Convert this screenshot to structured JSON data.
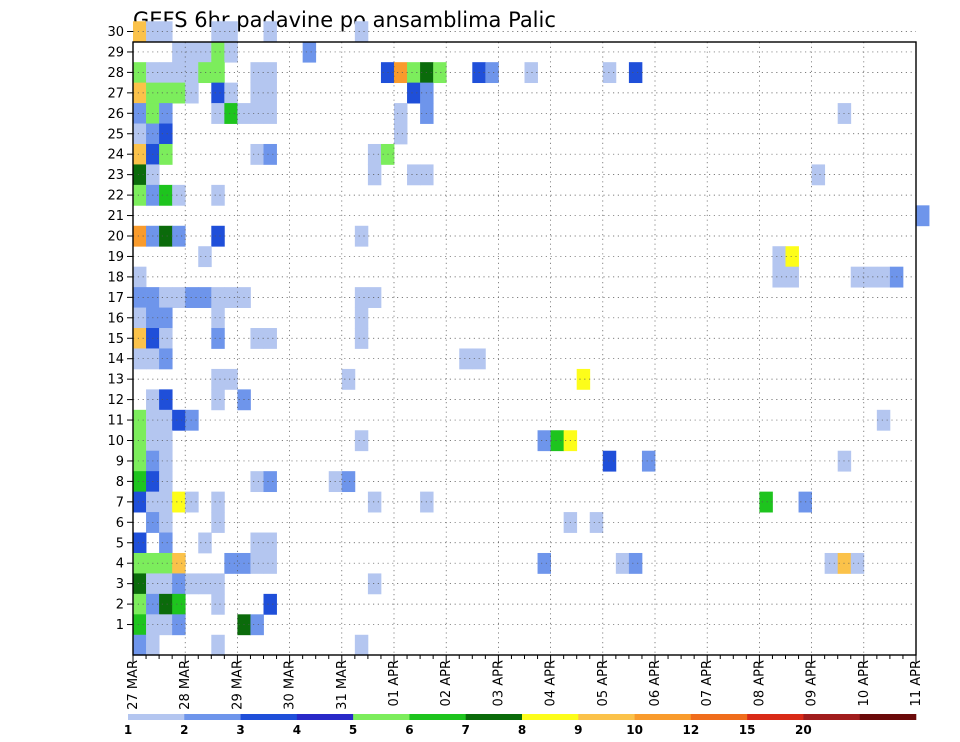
{
  "chart_data": {
    "type": "heatmap",
    "title": "GEFS 6hr padavine po ansamblima Palic",
    "members": [
      "1",
      "2",
      "3",
      "4",
      "5",
      "6",
      "7",
      "8",
      "9",
      "10",
      "11",
      "12",
      "13",
      "14",
      "15",
      "16",
      "17",
      "18",
      "19",
      "20",
      "21",
      "22",
      "23",
      "24",
      "25",
      "26",
      "27",
      "28",
      "29",
      "30"
    ],
    "x_labels": [
      "27 MAR",
      "28 MAR",
      "29 MAR",
      "30 MAR",
      "31 MAR",
      "01 APR",
      "02 APR",
      "03 APR",
      "04 APR",
      "05 APR",
      "06 APR",
      "07 APR",
      "08 APR",
      "09 APR",
      "10 APR",
      "11 APR"
    ],
    "steps_per_day": 4,
    "colorbar": {
      "labels": [
        "1",
        "2",
        "3",
        "4",
        "5",
        "6",
        "7",
        "8",
        "9",
        "10",
        "12",
        "15",
        "20"
      ],
      "colors": [
        "#b4c6f0",
        "#6e95eb",
        "#1f4fd9",
        "#2929c8",
        "#7ced5c",
        "#1ec41e",
        "#0b6b0b",
        "#fdfd1a",
        "#fbc24a",
        "#f99b2c",
        "#f06d1c",
        "#d92a17",
        "#a11d1d",
        "#6b0a0a"
      ]
    },
    "cells": [
      {
        "m": 30,
        "t": 0,
        "c": 8
      },
      {
        "m": 30,
        "t": 1,
        "c": 0
      },
      {
        "m": 30,
        "t": 2,
        "c": 0
      },
      {
        "m": 30,
        "t": 6,
        "c": 0
      },
      {
        "m": 30,
        "t": 7,
        "c": 0
      },
      {
        "m": 30,
        "t": 10,
        "c": 0
      },
      {
        "m": 30,
        "t": 17,
        "c": 0
      },
      {
        "m": 29,
        "t": 3,
        "c": 0
      },
      {
        "m": 29,
        "t": 4,
        "c": 0
      },
      {
        "m": 29,
        "t": 5,
        "c": 0
      },
      {
        "m": 29,
        "t": 6,
        "c": 4
      },
      {
        "m": 29,
        "t": 7,
        "c": 0
      },
      {
        "m": 29,
        "t": 13,
        "c": 1
      },
      {
        "m": 28,
        "t": 0,
        "c": 4
      },
      {
        "m": 28,
        "t": 1,
        "c": 0
      },
      {
        "m": 28,
        "t": 2,
        "c": 0
      },
      {
        "m": 28,
        "t": 3,
        "c": 0
      },
      {
        "m": 28,
        "t": 4,
        "c": 0
      },
      {
        "m": 28,
        "t": 5,
        "c": 4
      },
      {
        "m": 28,
        "t": 6,
        "c": 4
      },
      {
        "m": 28,
        "t": 9,
        "c": 0
      },
      {
        "m": 28,
        "t": 10,
        "c": 0
      },
      {
        "m": 28,
        "t": 19,
        "c": 2
      },
      {
        "m": 28,
        "t": 20,
        "c": 9
      },
      {
        "m": 28,
        "t": 21,
        "c": 4
      },
      {
        "m": 28,
        "t": 22,
        "c": 6
      },
      {
        "m": 28,
        "t": 23,
        "c": 4
      },
      {
        "m": 28,
        "t": 26,
        "c": 2
      },
      {
        "m": 28,
        "t": 27,
        "c": 1
      },
      {
        "m": 28,
        "t": 30,
        "c": 0
      },
      {
        "m": 28,
        "t": 36,
        "c": 0
      },
      {
        "m": 28,
        "t": 38,
        "c": 2
      },
      {
        "m": 27,
        "t": 0,
        "c": 8
      },
      {
        "m": 27,
        "t": 1,
        "c": 4
      },
      {
        "m": 27,
        "t": 2,
        "c": 4
      },
      {
        "m": 27,
        "t": 3,
        "c": 4
      },
      {
        "m": 27,
        "t": 4,
        "c": 0
      },
      {
        "m": 27,
        "t": 6,
        "c": 2
      },
      {
        "m": 27,
        "t": 7,
        "c": 0
      },
      {
        "m": 27,
        "t": 9,
        "c": 0
      },
      {
        "m": 27,
        "t": 10,
        "c": 0
      },
      {
        "m": 27,
        "t": 21,
        "c": 2
      },
      {
        "m": 27,
        "t": 22,
        "c": 1
      },
      {
        "m": 26,
        "t": 0,
        "c": 1
      },
      {
        "m": 26,
        "t": 1,
        "c": 4
      },
      {
        "m": 26,
        "t": 2,
        "c": 1
      },
      {
        "m": 26,
        "t": 6,
        "c": 0
      },
      {
        "m": 26,
        "t": 7,
        "c": 5
      },
      {
        "m": 26,
        "t": 8,
        "c": 0
      },
      {
        "m": 26,
        "t": 9,
        "c": 0
      },
      {
        "m": 26,
        "t": 10,
        "c": 0
      },
      {
        "m": 26,
        "t": 20,
        "c": 0
      },
      {
        "m": 26,
        "t": 22,
        "c": 1
      },
      {
        "m": 26,
        "t": 54,
        "c": 0
      },
      {
        "m": 25,
        "t": 0,
        "c": 0
      },
      {
        "m": 25,
        "t": 1,
        "c": 1
      },
      {
        "m": 25,
        "t": 2,
        "c": 2
      },
      {
        "m": 25,
        "t": 20,
        "c": 0
      },
      {
        "m": 24,
        "t": 0,
        "c": 8
      },
      {
        "m": 24,
        "t": 1,
        "c": 2
      },
      {
        "m": 24,
        "t": 2,
        "c": 4
      },
      {
        "m": 24,
        "t": 9,
        "c": 0
      },
      {
        "m": 24,
        "t": 10,
        "c": 1
      },
      {
        "m": 24,
        "t": 18,
        "c": 0
      },
      {
        "m": 24,
        "t": 19,
        "c": 4
      },
      {
        "m": 23,
        "t": 0,
        "c": 6
      },
      {
        "m": 23,
        "t": 1,
        "c": 0
      },
      {
        "m": 23,
        "t": 18,
        "c": 0
      },
      {
        "m": 23,
        "t": 21,
        "c": 0
      },
      {
        "m": 23,
        "t": 22,
        "c": 0
      },
      {
        "m": 23,
        "t": 52,
        "c": 0
      },
      {
        "m": 22,
        "t": 0,
        "c": 4
      },
      {
        "m": 22,
        "t": 1,
        "c": 1
      },
      {
        "m": 22,
        "t": 2,
        "c": 5
      },
      {
        "m": 22,
        "t": 3,
        "c": 0
      },
      {
        "m": 22,
        "t": 6,
        "c": 0
      },
      {
        "m": 21,
        "t": 60,
        "c": 1
      },
      {
        "m": 20,
        "t": 0,
        "c": 9
      },
      {
        "m": 20,
        "t": 1,
        "c": 1
      },
      {
        "m": 20,
        "t": 2,
        "c": 6
      },
      {
        "m": 20,
        "t": 3,
        "c": 1
      },
      {
        "m": 20,
        "t": 6,
        "c": 2
      },
      {
        "m": 20,
        "t": 17,
        "c": 0
      },
      {
        "m": 19,
        "t": 5,
        "c": 0
      },
      {
        "m": 19,
        "t": 49,
        "c": 0
      },
      {
        "m": 19,
        "t": 50,
        "c": 7
      },
      {
        "m": 18,
        "t": 0,
        "c": 0
      },
      {
        "m": 18,
        "t": 49,
        "c": 0
      },
      {
        "m": 18,
        "t": 50,
        "c": 0
      },
      {
        "m": 18,
        "t": 55,
        "c": 0
      },
      {
        "m": 18,
        "t": 56,
        "c": 0
      },
      {
        "m": 18,
        "t": 57,
        "c": 0
      },
      {
        "m": 18,
        "t": 58,
        "c": 1
      },
      {
        "m": 17,
        "t": 0,
        "c": 1
      },
      {
        "m": 17,
        "t": 1,
        "c": 1
      },
      {
        "m": 17,
        "t": 2,
        "c": 0
      },
      {
        "m": 17,
        "t": 3,
        "c": 0
      },
      {
        "m": 17,
        "t": 4,
        "c": 1
      },
      {
        "m": 17,
        "t": 5,
        "c": 1
      },
      {
        "m": 17,
        "t": 6,
        "c": 0
      },
      {
        "m": 17,
        "t": 7,
        "c": 0
      },
      {
        "m": 17,
        "t": 8,
        "c": 0
      },
      {
        "m": 17,
        "t": 17,
        "c": 0
      },
      {
        "m": 17,
        "t": 18,
        "c": 0
      },
      {
        "m": 16,
        "t": 0,
        "c": 0
      },
      {
        "m": 16,
        "t": 1,
        "c": 1
      },
      {
        "m": 16,
        "t": 2,
        "c": 1
      },
      {
        "m": 16,
        "t": 6,
        "c": 0
      },
      {
        "m": 16,
        "t": 17,
        "c": 0
      },
      {
        "m": 15,
        "t": 0,
        "c": 8
      },
      {
        "m": 15,
        "t": 1,
        "c": 2
      },
      {
        "m": 15,
        "t": 2,
        "c": 0
      },
      {
        "m": 15,
        "t": 6,
        "c": 1
      },
      {
        "m": 15,
        "t": 9,
        "c": 0
      },
      {
        "m": 15,
        "t": 10,
        "c": 0
      },
      {
        "m": 15,
        "t": 17,
        "c": 0
      },
      {
        "m": 14,
        "t": 0,
        "c": 0
      },
      {
        "m": 14,
        "t": 1,
        "c": 0
      },
      {
        "m": 14,
        "t": 2,
        "c": 1
      },
      {
        "m": 14,
        "t": 25,
        "c": 0
      },
      {
        "m": 14,
        "t": 26,
        "c": 0
      },
      {
        "m": 13,
        "t": 6,
        "c": 0
      },
      {
        "m": 13,
        "t": 7,
        "c": 0
      },
      {
        "m": 13,
        "t": 16,
        "c": 0
      },
      {
        "m": 13,
        "t": 34,
        "c": 7
      },
      {
        "m": 12,
        "t": 1,
        "c": 0
      },
      {
        "m": 12,
        "t": 2,
        "c": 2
      },
      {
        "m": 12,
        "t": 6,
        "c": 0
      },
      {
        "m": 12,
        "t": 8,
        "c": 1
      },
      {
        "m": 11,
        "t": 0,
        "c": 4
      },
      {
        "m": 11,
        "t": 1,
        "c": 0
      },
      {
        "m": 11,
        "t": 2,
        "c": 0
      },
      {
        "m": 11,
        "t": 3,
        "c": 2
      },
      {
        "m": 11,
        "t": 4,
        "c": 1
      },
      {
        "m": 11,
        "t": 57,
        "c": 0
      },
      {
        "m": 10,
        "t": 0,
        "c": 4
      },
      {
        "m": 10,
        "t": 1,
        "c": 0
      },
      {
        "m": 10,
        "t": 2,
        "c": 0
      },
      {
        "m": 10,
        "t": 17,
        "c": 0
      },
      {
        "m": 10,
        "t": 31,
        "c": 1
      },
      {
        "m": 10,
        "t": 32,
        "c": 5
      },
      {
        "m": 10,
        "t": 33,
        "c": 7
      },
      {
        "m": 9,
        "t": 0,
        "c": 4
      },
      {
        "m": 9,
        "t": 1,
        "c": 1
      },
      {
        "m": 9,
        "t": 2,
        "c": 0
      },
      {
        "m": 9,
        "t": 36,
        "c": 2
      },
      {
        "m": 9,
        "t": 39,
        "c": 1
      },
      {
        "m": 9,
        "t": 54,
        "c": 0
      },
      {
        "m": 8,
        "t": 0,
        "c": 5
      },
      {
        "m": 8,
        "t": 1,
        "c": 2
      },
      {
        "m": 8,
        "t": 2,
        "c": 0
      },
      {
        "m": 8,
        "t": 9,
        "c": 0
      },
      {
        "m": 8,
        "t": 10,
        "c": 1
      },
      {
        "m": 8,
        "t": 15,
        "c": 0
      },
      {
        "m": 8,
        "t": 16,
        "c": 1
      },
      {
        "m": 7,
        "t": 0,
        "c": 2
      },
      {
        "m": 7,
        "t": 1,
        "c": 0
      },
      {
        "m": 7,
        "t": 2,
        "c": 0
      },
      {
        "m": 7,
        "t": 3,
        "c": 7
      },
      {
        "m": 7,
        "t": 4,
        "c": 0
      },
      {
        "m": 7,
        "t": 6,
        "c": 0
      },
      {
        "m": 7,
        "t": 18,
        "c": 0
      },
      {
        "m": 7,
        "t": 22,
        "c": 0
      },
      {
        "m": 7,
        "t": 48,
        "c": 5
      },
      {
        "m": 7,
        "t": 51,
        "c": 1
      },
      {
        "m": 6,
        "t": 1,
        "c": 1
      },
      {
        "m": 6,
        "t": 2,
        "c": 0
      },
      {
        "m": 6,
        "t": 6,
        "c": 0
      },
      {
        "m": 6,
        "t": 33,
        "c": 0
      },
      {
        "m": 6,
        "t": 35,
        "c": 0
      },
      {
        "m": 5,
        "t": 0,
        "c": 2
      },
      {
        "m": 5,
        "t": 2,
        "c": 1
      },
      {
        "m": 5,
        "t": 5,
        "c": 0
      },
      {
        "m": 5,
        "t": 9,
        "c": 0
      },
      {
        "m": 5,
        "t": 10,
        "c": 0
      },
      {
        "m": 4,
        "t": 0,
        "c": 4
      },
      {
        "m": 4,
        "t": 1,
        "c": 4
      },
      {
        "m": 4,
        "t": 2,
        "c": 4
      },
      {
        "m": 4,
        "t": 3,
        "c": 8
      },
      {
        "m": 4,
        "t": 7,
        "c": 1
      },
      {
        "m": 4,
        "t": 8,
        "c": 1
      },
      {
        "m": 4,
        "t": 9,
        "c": 0
      },
      {
        "m": 4,
        "t": 10,
        "c": 0
      },
      {
        "m": 4,
        "t": 31,
        "c": 1
      },
      {
        "m": 4,
        "t": 37,
        "c": 0
      },
      {
        "m": 4,
        "t": 38,
        "c": 1
      },
      {
        "m": 4,
        "t": 53,
        "c": 0
      },
      {
        "m": 4,
        "t": 54,
        "c": 8
      },
      {
        "m": 4,
        "t": 55,
        "c": 0
      },
      {
        "m": 3,
        "t": 0,
        "c": 6
      },
      {
        "m": 3,
        "t": 1,
        "c": 0
      },
      {
        "m": 3,
        "t": 2,
        "c": 0
      },
      {
        "m": 3,
        "t": 3,
        "c": 1
      },
      {
        "m": 3,
        "t": 4,
        "c": 0
      },
      {
        "m": 3,
        "t": 5,
        "c": 0
      },
      {
        "m": 3,
        "t": 6,
        "c": 0
      },
      {
        "m": 3,
        "t": 18,
        "c": 0
      },
      {
        "m": 2,
        "t": 0,
        "c": 4
      },
      {
        "m": 2,
        "t": 1,
        "c": 1
      },
      {
        "m": 2,
        "t": 2,
        "c": 6
      },
      {
        "m": 2,
        "t": 3,
        "c": 5
      },
      {
        "m": 2,
        "t": 6,
        "c": 0
      },
      {
        "m": 2,
        "t": 10,
        "c": 2
      },
      {
        "m": 1,
        "t": 0,
        "c": 5
      },
      {
        "m": 1,
        "t": 1,
        "c": 0
      },
      {
        "m": 1,
        "t": 2,
        "c": 0
      },
      {
        "m": 1,
        "t": 3,
        "c": 1
      },
      {
        "m": 1,
        "t": 8,
        "c": 6
      },
      {
        "m": 1,
        "t": 9,
        "c": 1
      },
      {
        "m": 0,
        "t": 0,
        "c": 1
      },
      {
        "m": 0,
        "t": 1,
        "c": 0
      },
      {
        "m": 0,
        "t": 6,
        "c": 0
      },
      {
        "m": 0,
        "t": 17,
        "c": 0
      }
    ]
  }
}
